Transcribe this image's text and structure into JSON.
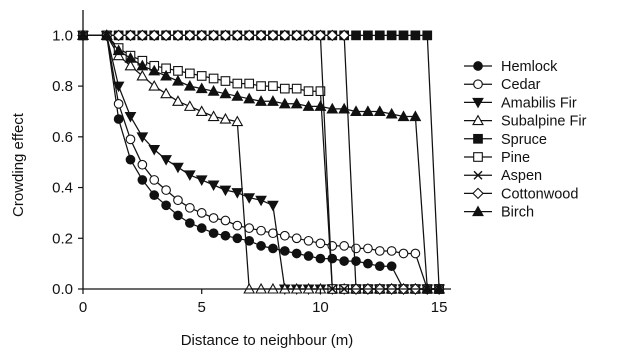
{
  "chart_data": {
    "type": "line",
    "title": "",
    "xlabel": "Distance to neighbour (m)",
    "ylabel": "Crowding effect",
    "xlim": [
      0,
      15.5
    ],
    "ylim": [
      0,
      1.1
    ],
    "x_ticks": [
      0,
      5,
      10,
      15
    ],
    "y_ticks": [
      0.0,
      0.2,
      0.4,
      0.6,
      0.8,
      1.0
    ],
    "x_tick_labels": [
      "0",
      "5",
      "10",
      "15"
    ],
    "y_tick_labels": [
      "0.0",
      "0.2",
      "0.4",
      "0.6",
      "0.8",
      "1.0"
    ],
    "grid": false,
    "legend_position": "right",
    "series": [
      {
        "name": "Hemlock",
        "marker": "filled-circle",
        "points": [
          [
            0,
            1
          ],
          [
            1,
            1
          ],
          [
            1.5,
            0.67
          ],
          [
            2,
            0.51
          ],
          [
            2.5,
            0.43
          ],
          [
            3,
            0.37
          ],
          [
            3.5,
            0.33
          ],
          [
            4,
            0.29
          ],
          [
            4.5,
            0.26
          ],
          [
            5,
            0.24
          ],
          [
            5.5,
            0.22
          ],
          [
            6,
            0.21
          ],
          [
            6.5,
            0.2
          ],
          [
            7,
            0.19
          ],
          [
            7.5,
            0.17
          ],
          [
            8,
            0.16
          ],
          [
            8.5,
            0.15
          ],
          [
            9,
            0.14
          ],
          [
            9.5,
            0.13
          ],
          [
            10,
            0.12
          ],
          [
            10.5,
            0.12
          ],
          [
            11,
            0.11
          ],
          [
            11.5,
            0.11
          ],
          [
            12,
            0.1
          ],
          [
            12.5,
            0.09
          ],
          [
            13,
            0.09
          ],
          [
            13.5,
            0
          ],
          [
            14,
            0
          ],
          [
            14.5,
            0
          ],
          [
            15,
            0
          ]
        ]
      },
      {
        "name": "Cedar",
        "marker": "open-circle",
        "points": [
          [
            0,
            1
          ],
          [
            1,
            1
          ],
          [
            1.5,
            0.73
          ],
          [
            2,
            0.59
          ],
          [
            2.5,
            0.49
          ],
          [
            3,
            0.43
          ],
          [
            3.5,
            0.39
          ],
          [
            4,
            0.35
          ],
          [
            4.5,
            0.32
          ],
          [
            5,
            0.3
          ],
          [
            5.5,
            0.28
          ],
          [
            6,
            0.27
          ],
          [
            6.5,
            0.25
          ],
          [
            7,
            0.24
          ],
          [
            7.5,
            0.23
          ],
          [
            8,
            0.22
          ],
          [
            8.5,
            0.21
          ],
          [
            9,
            0.2
          ],
          [
            9.5,
            0.19
          ],
          [
            10,
            0.18
          ],
          [
            10.5,
            0.17
          ],
          [
            11,
            0.17
          ],
          [
            11.5,
            0.16
          ],
          [
            12,
            0.16
          ],
          [
            12.5,
            0.15
          ],
          [
            13,
            0.15
          ],
          [
            13.5,
            0.14
          ],
          [
            14,
            0.14
          ],
          [
            14.5,
            0
          ],
          [
            15,
            0
          ]
        ]
      },
      {
        "name": "Amabilis Fir",
        "marker": "filled-triangle-down",
        "points": [
          [
            0,
            1
          ],
          [
            1,
            1
          ],
          [
            1.5,
            0.8
          ],
          [
            2,
            0.68
          ],
          [
            2.5,
            0.6
          ],
          [
            3,
            0.55
          ],
          [
            3.5,
            0.51
          ],
          [
            4,
            0.48
          ],
          [
            4.5,
            0.45
          ],
          [
            5,
            0.43
          ],
          [
            5.5,
            0.41
          ],
          [
            6,
            0.39
          ],
          [
            6.5,
            0.38
          ],
          [
            7,
            0.36
          ],
          [
            7.5,
            0.35
          ],
          [
            8,
            0.33
          ],
          [
            8.5,
            0
          ],
          [
            9,
            0
          ],
          [
            9.5,
            0
          ],
          [
            10,
            0
          ],
          [
            10.5,
            0
          ],
          [
            11,
            0
          ],
          [
            11.5,
            0
          ],
          [
            12,
            0
          ],
          [
            12.5,
            0
          ],
          [
            13,
            0
          ],
          [
            13.5,
            0
          ],
          [
            14,
            0
          ],
          [
            14.5,
            0
          ],
          [
            15,
            0
          ]
        ]
      },
      {
        "name": "Subalpine Fir",
        "marker": "open-triangle-up",
        "points": [
          [
            0,
            1
          ],
          [
            1,
            1
          ],
          [
            1.5,
            0.92
          ],
          [
            2,
            0.88
          ],
          [
            2.5,
            0.84
          ],
          [
            3,
            0.8
          ],
          [
            3.5,
            0.77
          ],
          [
            4,
            0.74
          ],
          [
            4.5,
            0.72
          ],
          [
            5,
            0.7
          ],
          [
            5.5,
            0.68
          ],
          [
            6,
            0.67
          ],
          [
            6.5,
            0.66
          ],
          [
            7,
            0
          ],
          [
            7.5,
            0
          ],
          [
            8,
            0
          ],
          [
            8.5,
            0
          ],
          [
            9,
            0
          ],
          [
            9.5,
            0
          ],
          [
            10,
            0
          ],
          [
            10.5,
            0
          ],
          [
            11,
            0
          ],
          [
            11.5,
            0
          ],
          [
            12,
            0
          ],
          [
            12.5,
            0
          ],
          [
            13,
            0
          ],
          [
            13.5,
            0
          ],
          [
            14,
            0
          ],
          [
            14.5,
            0
          ],
          [
            15,
            0
          ]
        ]
      },
      {
        "name": "Spruce",
        "marker": "filled-square",
        "points": [
          [
            0,
            1
          ],
          [
            1,
            1
          ],
          [
            1.5,
            1
          ],
          [
            2,
            1
          ],
          [
            2.5,
            1
          ],
          [
            3,
            1
          ],
          [
            3.5,
            1
          ],
          [
            4,
            1
          ],
          [
            4.5,
            1
          ],
          [
            5,
            1
          ],
          [
            5.5,
            1
          ],
          [
            6,
            1
          ],
          [
            6.5,
            1
          ],
          [
            7,
            1
          ],
          [
            7.5,
            1
          ],
          [
            8,
            1
          ],
          [
            8.5,
            1
          ],
          [
            9,
            1
          ],
          [
            9.5,
            1
          ],
          [
            10,
            1
          ],
          [
            10.5,
            1
          ],
          [
            11,
            1
          ],
          [
            11.5,
            1
          ],
          [
            12,
            1
          ],
          [
            12.5,
            1
          ],
          [
            13,
            1
          ],
          [
            13.5,
            1
          ],
          [
            14,
            1
          ],
          [
            14.5,
            1
          ],
          [
            15,
            0
          ]
        ]
      },
      {
        "name": "Pine",
        "marker": "open-square",
        "points": [
          [
            0,
            1
          ],
          [
            1,
            1
          ],
          [
            1.5,
            0.95
          ],
          [
            2,
            0.92
          ],
          [
            2.5,
            0.9
          ],
          [
            3,
            0.88
          ],
          [
            3.5,
            0.87
          ],
          [
            4,
            0.86
          ],
          [
            4.5,
            0.85
          ],
          [
            5,
            0.84
          ],
          [
            5.5,
            0.83
          ],
          [
            6,
            0.82
          ],
          [
            6.5,
            0.81
          ],
          [
            7,
            0.81
          ],
          [
            7.5,
            0.8
          ],
          [
            8,
            0.8
          ],
          [
            8.5,
            0.79
          ],
          [
            9,
            0.79
          ],
          [
            9.5,
            0.78
          ],
          [
            10,
            0.78
          ],
          [
            10.5,
            0
          ],
          [
            11,
            0
          ],
          [
            11.5,
            0
          ],
          [
            12,
            0
          ],
          [
            12.5,
            0
          ],
          [
            13,
            0
          ],
          [
            13.5,
            0
          ],
          [
            14,
            0
          ],
          [
            14.5,
            0
          ],
          [
            15,
            0
          ]
        ]
      },
      {
        "name": "Aspen",
        "marker": "x",
        "points": [
          [
            0,
            1
          ],
          [
            1,
            1
          ],
          [
            1.5,
            1
          ],
          [
            2,
            1
          ],
          [
            2.5,
            1
          ],
          [
            3,
            1
          ],
          [
            3.5,
            1
          ],
          [
            4,
            1
          ],
          [
            4.5,
            1
          ],
          [
            5,
            1
          ],
          [
            5.5,
            1
          ],
          [
            6,
            1
          ],
          [
            6.5,
            1
          ],
          [
            7,
            1
          ],
          [
            7.5,
            1
          ],
          [
            8,
            1
          ],
          [
            8.5,
            1
          ],
          [
            9,
            1
          ],
          [
            9.5,
            1
          ],
          [
            10,
            1
          ],
          [
            10.5,
            0
          ],
          [
            11,
            0
          ],
          [
            11.5,
            0
          ],
          [
            12,
            0
          ],
          [
            12.5,
            0
          ],
          [
            13,
            0
          ],
          [
            13.5,
            0
          ],
          [
            14,
            0
          ],
          [
            14.5,
            0
          ],
          [
            15,
            0
          ]
        ]
      },
      {
        "name": "Cottonwood",
        "marker": "open-diamond",
        "points": [
          [
            0,
            1
          ],
          [
            1,
            1
          ],
          [
            1.5,
            1
          ],
          [
            2,
            1
          ],
          [
            2.5,
            1
          ],
          [
            3,
            1
          ],
          [
            3.5,
            1
          ],
          [
            4,
            1
          ],
          [
            4.5,
            1
          ],
          [
            5,
            1
          ],
          [
            5.5,
            1
          ],
          [
            6,
            1
          ],
          [
            6.5,
            1
          ],
          [
            7,
            1
          ],
          [
            7.5,
            1
          ],
          [
            8,
            1
          ],
          [
            8.5,
            1
          ],
          [
            9,
            1
          ],
          [
            9.5,
            1
          ],
          [
            10,
            1
          ],
          [
            10.5,
            1
          ],
          [
            11,
            1
          ],
          [
            11.5,
            0
          ],
          [
            12,
            0
          ],
          [
            12.5,
            0
          ],
          [
            13,
            0
          ],
          [
            13.5,
            0
          ],
          [
            14,
            0
          ],
          [
            14.5,
            0
          ],
          [
            15,
            0
          ]
        ]
      },
      {
        "name": "Birch",
        "marker": "filled-triangle-up",
        "points": [
          [
            0,
            1
          ],
          [
            1,
            1
          ],
          [
            1.5,
            0.94
          ],
          [
            2,
            0.91
          ],
          [
            2.5,
            0.88
          ],
          [
            3,
            0.86
          ],
          [
            3.5,
            0.84
          ],
          [
            4,
            0.82
          ],
          [
            4.5,
            0.8
          ],
          [
            5,
            0.79
          ],
          [
            5.5,
            0.78
          ],
          [
            6,
            0.77
          ],
          [
            6.5,
            0.76
          ],
          [
            7,
            0.75
          ],
          [
            7.5,
            0.74
          ],
          [
            8,
            0.74
          ],
          [
            8.5,
            0.73
          ],
          [
            9,
            0.73
          ],
          [
            9.5,
            0.72
          ],
          [
            10,
            0.72
          ],
          [
            10.5,
            0.71
          ],
          [
            11,
            0.71
          ],
          [
            11.5,
            0.7
          ],
          [
            12,
            0.7
          ],
          [
            12.5,
            0.7
          ],
          [
            13,
            0.69
          ],
          [
            13.5,
            0.68
          ],
          [
            14,
            0.68
          ],
          [
            14.5,
            0
          ],
          [
            15,
            0
          ]
        ]
      }
    ]
  }
}
